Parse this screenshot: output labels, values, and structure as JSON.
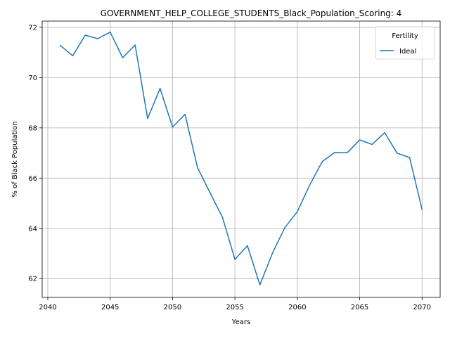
{
  "chart_data": {
    "type": "line",
    "title": "GOVERNMENT_HELP_COLLEGE_STUDENTS_Black_Population_Scoring: 4",
    "xlabel": "Years",
    "ylabel": "% of Black Population",
    "xlim": [
      2039.55,
      2071.45
    ],
    "ylim": [
      61.25,
      72.25
    ],
    "xticks": [
      2040,
      2045,
      2050,
      2055,
      2060,
      2065,
      2070
    ],
    "yticks": [
      62,
      64,
      66,
      68,
      70,
      72
    ],
    "grid": true,
    "legend": {
      "title": "Fertility",
      "placement": "top-right"
    },
    "series": [
      {
        "name": "Ideal",
        "color": "#1f77b4",
        "x": [
          2041,
          2042,
          2043,
          2044,
          2045,
          2046,
          2047,
          2048,
          2049,
          2050,
          2051,
          2052,
          2053,
          2054,
          2055,
          2056,
          2057,
          2058,
          2059,
          2060,
          2061,
          2062,
          2063,
          2064,
          2065,
          2066,
          2067,
          2068,
          2069,
          2070
        ],
        "y": [
          71.28,
          70.87,
          71.69,
          71.55,
          71.81,
          70.79,
          71.3,
          68.37,
          69.57,
          68.03,
          68.54,
          66.42,
          65.42,
          64.44,
          62.76,
          63.31,
          61.75,
          63.0,
          64.03,
          64.66,
          65.73,
          66.66,
          67.02,
          67.01,
          67.52,
          67.34,
          67.81,
          66.99,
          66.82,
          64.75
        ]
      }
    ]
  }
}
